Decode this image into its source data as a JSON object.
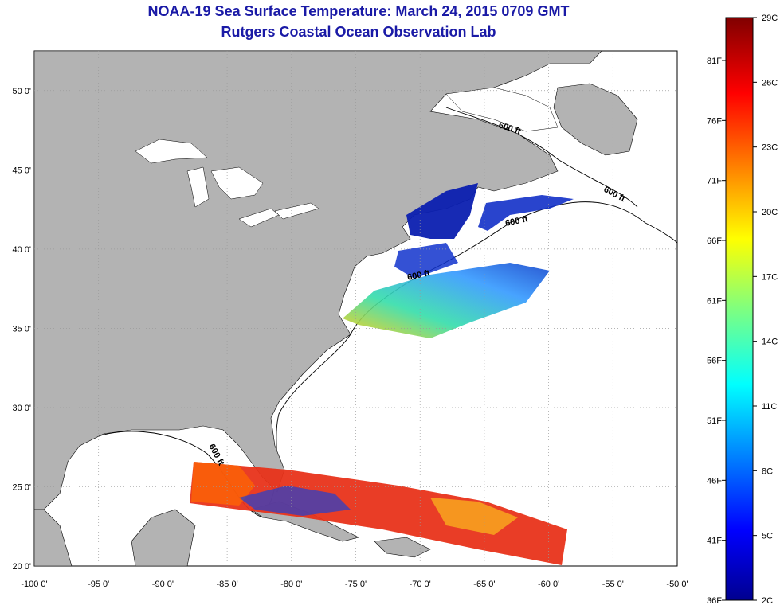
{
  "title": "NOAA-19 Sea Surface Temperature:  March 24, 2015 0709 GMT",
  "subtitle": "Rutgers Coastal Ocean Observation Lab",
  "colors": {
    "title": "#1a1aa6",
    "land": "#b3b3b3",
    "ocean": "#ffffff",
    "contour": "#000000",
    "grid": "#9a9a9a"
  },
  "map": {
    "lon_range": [
      -100,
      -50
    ],
    "lat_range": [
      20,
      52.5
    ],
    "lon_ticks": [
      "-100 0'",
      "-95 0'",
      "-90 0'",
      "-85 0'",
      "-80 0'",
      "-75 0'",
      "-70 0'",
      "-65 0'",
      "-60 0'",
      "-55 0'",
      "-50 0'"
    ],
    "lat_ticks": [
      "20 0'",
      "25 0'",
      "30 0'",
      "35 0'",
      "40 0'",
      "45 0'",
      "50 0'"
    ],
    "contour_labels": [
      "600 ft",
      "600 ft",
      "600 ft",
      "600 ft",
      "600 ft"
    ]
  },
  "colorbar": {
    "celsius": [
      "29C",
      "26C",
      "23C",
      "20C",
      "17C",
      "14C",
      "11C",
      "8C",
      "5C",
      "2C"
    ],
    "fahrenheit": [
      "81F",
      "76F",
      "71F",
      "66F",
      "61F",
      "56F",
      "51F",
      "46F",
      "41F",
      "36F"
    ]
  }
}
